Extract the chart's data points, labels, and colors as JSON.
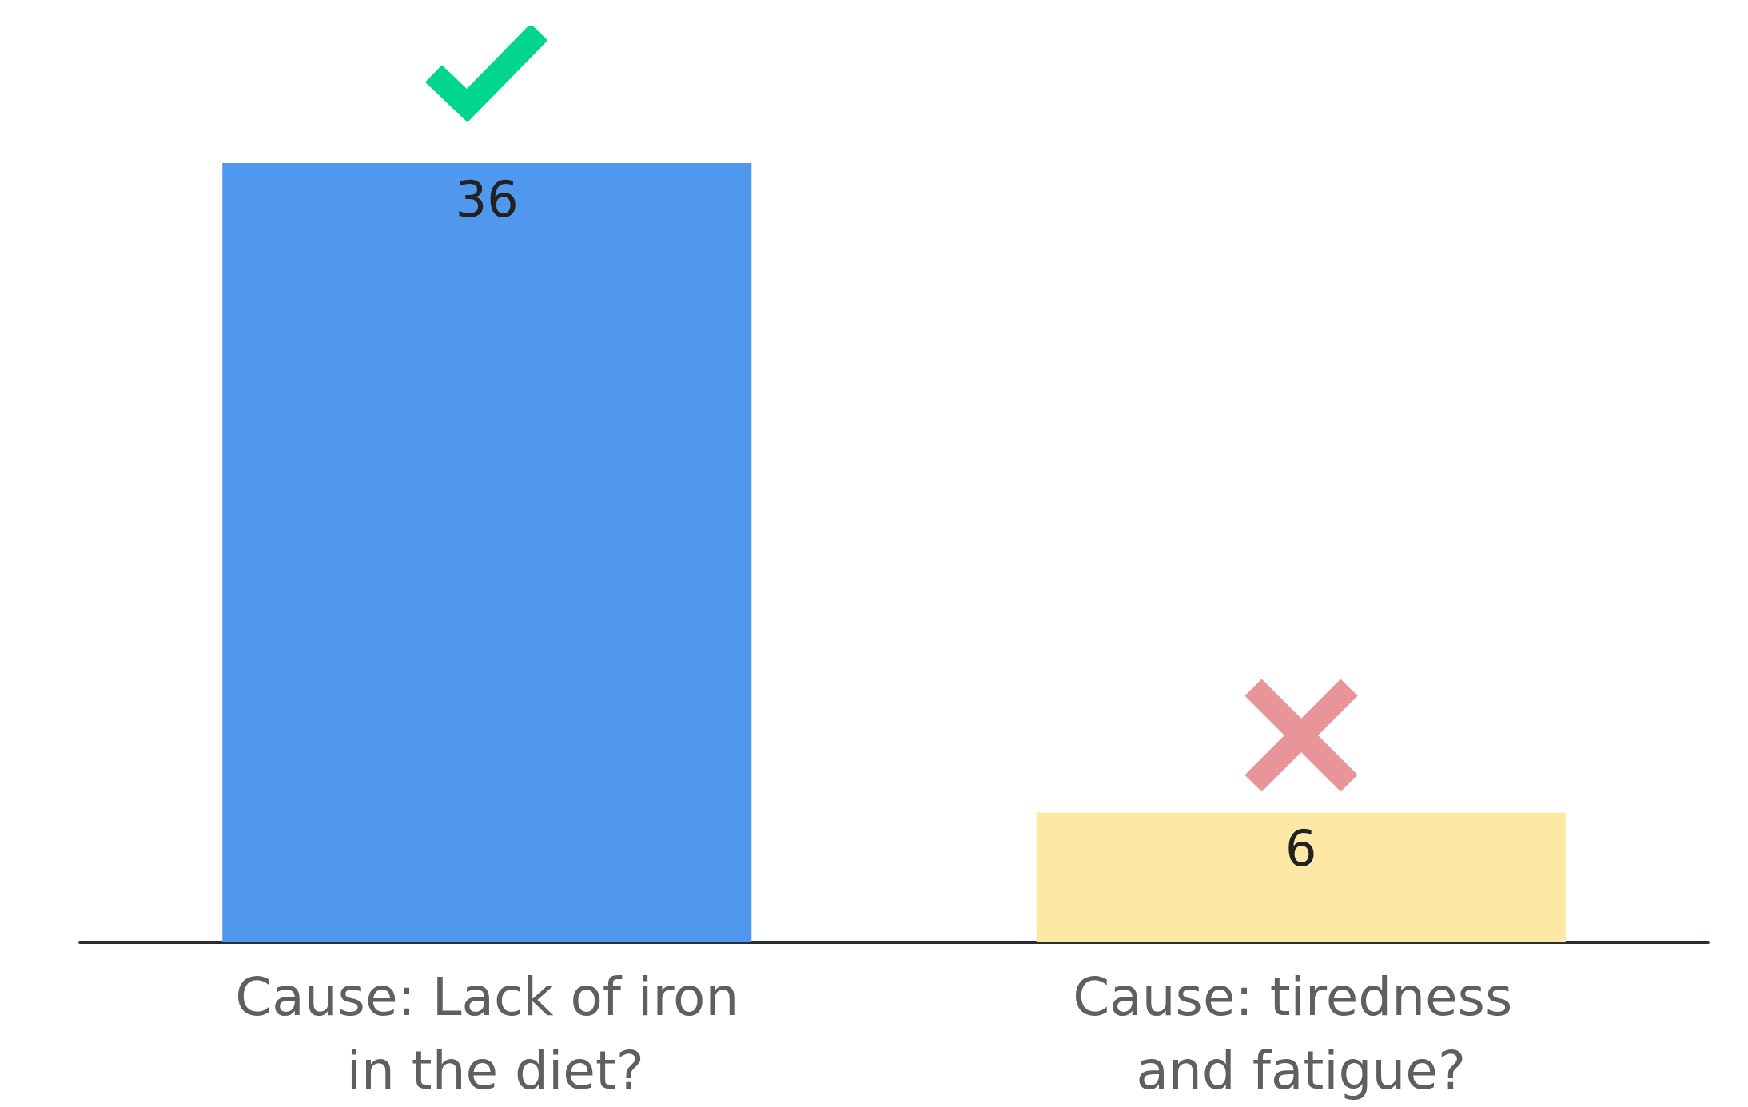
{
  "chart_data": {
    "type": "bar",
    "categories": [
      "Cause: Lack of iron in the diet?",
      "Cause: tiredness and fatigue?"
    ],
    "values": [
      36,
      6
    ],
    "colors": [
      "#4f98ed",
      "#fde8a5"
    ],
    "data_labels": true
  }
}
